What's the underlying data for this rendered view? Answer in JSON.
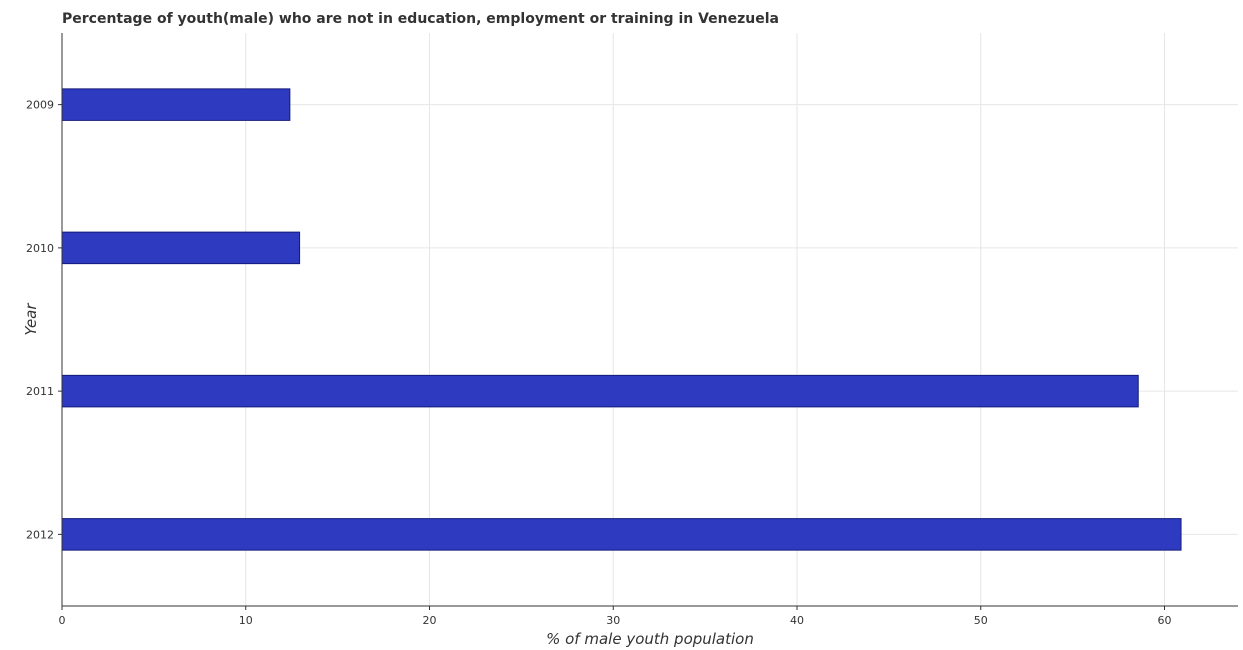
{
  "chart_data": {
    "type": "bar",
    "orientation": "horizontal",
    "title": "Percentage of youth(male) who are not in education, employment or training in Venezuela",
    "xlabel": "% of male youth population",
    "ylabel": "Year",
    "categories": [
      "2009",
      "2010",
      "2011",
      "2012"
    ],
    "values": [
      12.4,
      12.93,
      58.57,
      60.9
    ],
    "xlim": [
      0,
      64
    ],
    "xticks": [
      0,
      10,
      20,
      30,
      40,
      50,
      60
    ],
    "xtick_labels": [
      "0",
      "10",
      "20",
      "30",
      "40",
      "50",
      "60"
    ],
    "grid": true,
    "legend": "none",
    "colors": {
      "bar": "#2e3bc0",
      "bar_edge": "#131a7a",
      "grid": "#e6e6e6",
      "axis": "#333333"
    }
  }
}
